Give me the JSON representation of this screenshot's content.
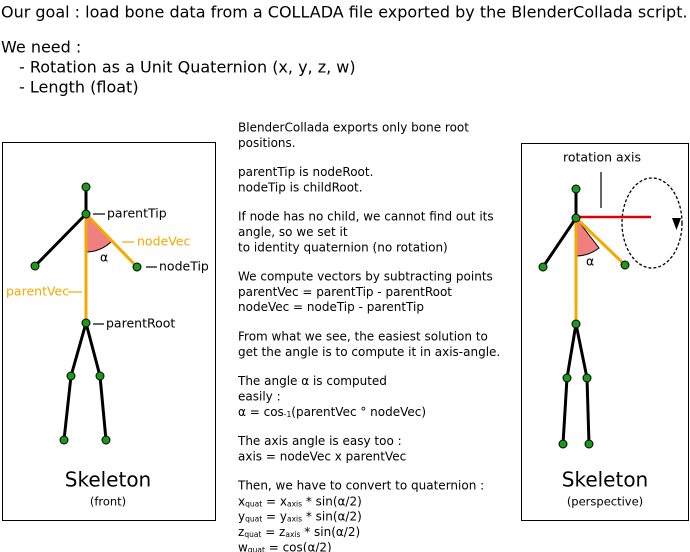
{
  "header": {
    "goal": "Our goal : load bone data from a COLLADA file exported by the BlenderCollada script.",
    "need": "We need :",
    "items": [
      "- Rotation as a Unit Quaternion (x, y, z, w)",
      "- Length (float)"
    ]
  },
  "front": {
    "labels": {
      "parentTip": "parentTip",
      "nodeVec": "nodeVec",
      "alpha": "α",
      "nodeTip": "nodeTip",
      "parentVec": "parentVec",
      "parentRoot": "parentRoot"
    },
    "title": "Skeleton",
    "subtitle": "(front)"
  },
  "perspective": {
    "axis_label": "rotation axis",
    "alpha": "α",
    "title": "Skeleton",
    "subtitle": "(perspective)"
  },
  "notes": {
    "paragraphs": [
      [
        "BlenderCollada exports only bone root",
        "positions."
      ],
      [
        "parentTip is nodeRoot.",
        "nodeTip is childRoot."
      ],
      [
        "If node has no child, we cannot find out its",
        "angle, so we set it",
        "to identity quaternion (no rotation)"
      ],
      [
        "We compute vectors by subtracting points",
        "parentVec = parentTip - parentRoot",
        "nodeVec = nodeTip - parentTip"
      ],
      [
        "From what we see, the easiest solution to",
        "get the angle is to compute it in axis-angle."
      ],
      [
        "The angle α is computed",
        "easily :",
        [
          "α = cos",
          "-1",
          "(parentVec ° nodeVec)"
        ]
      ],
      [
        "The axis angle is easy too :",
        "axis = nodeVec x parentVec"
      ],
      [
        "Then, we have to convert to quaternion :",
        [
          "x",
          "quat",
          " = x",
          "axis",
          " * sin(α/2)"
        ],
        [
          "y",
          "quat",
          " = y",
          "axis",
          " * sin(α/2)"
        ],
        [
          "z",
          "quat",
          " = z",
          "axis",
          " * sin(α/2)"
        ],
        [
          "w",
          "quat",
          " = cos(α/2)"
        ]
      ]
    ]
  }
}
